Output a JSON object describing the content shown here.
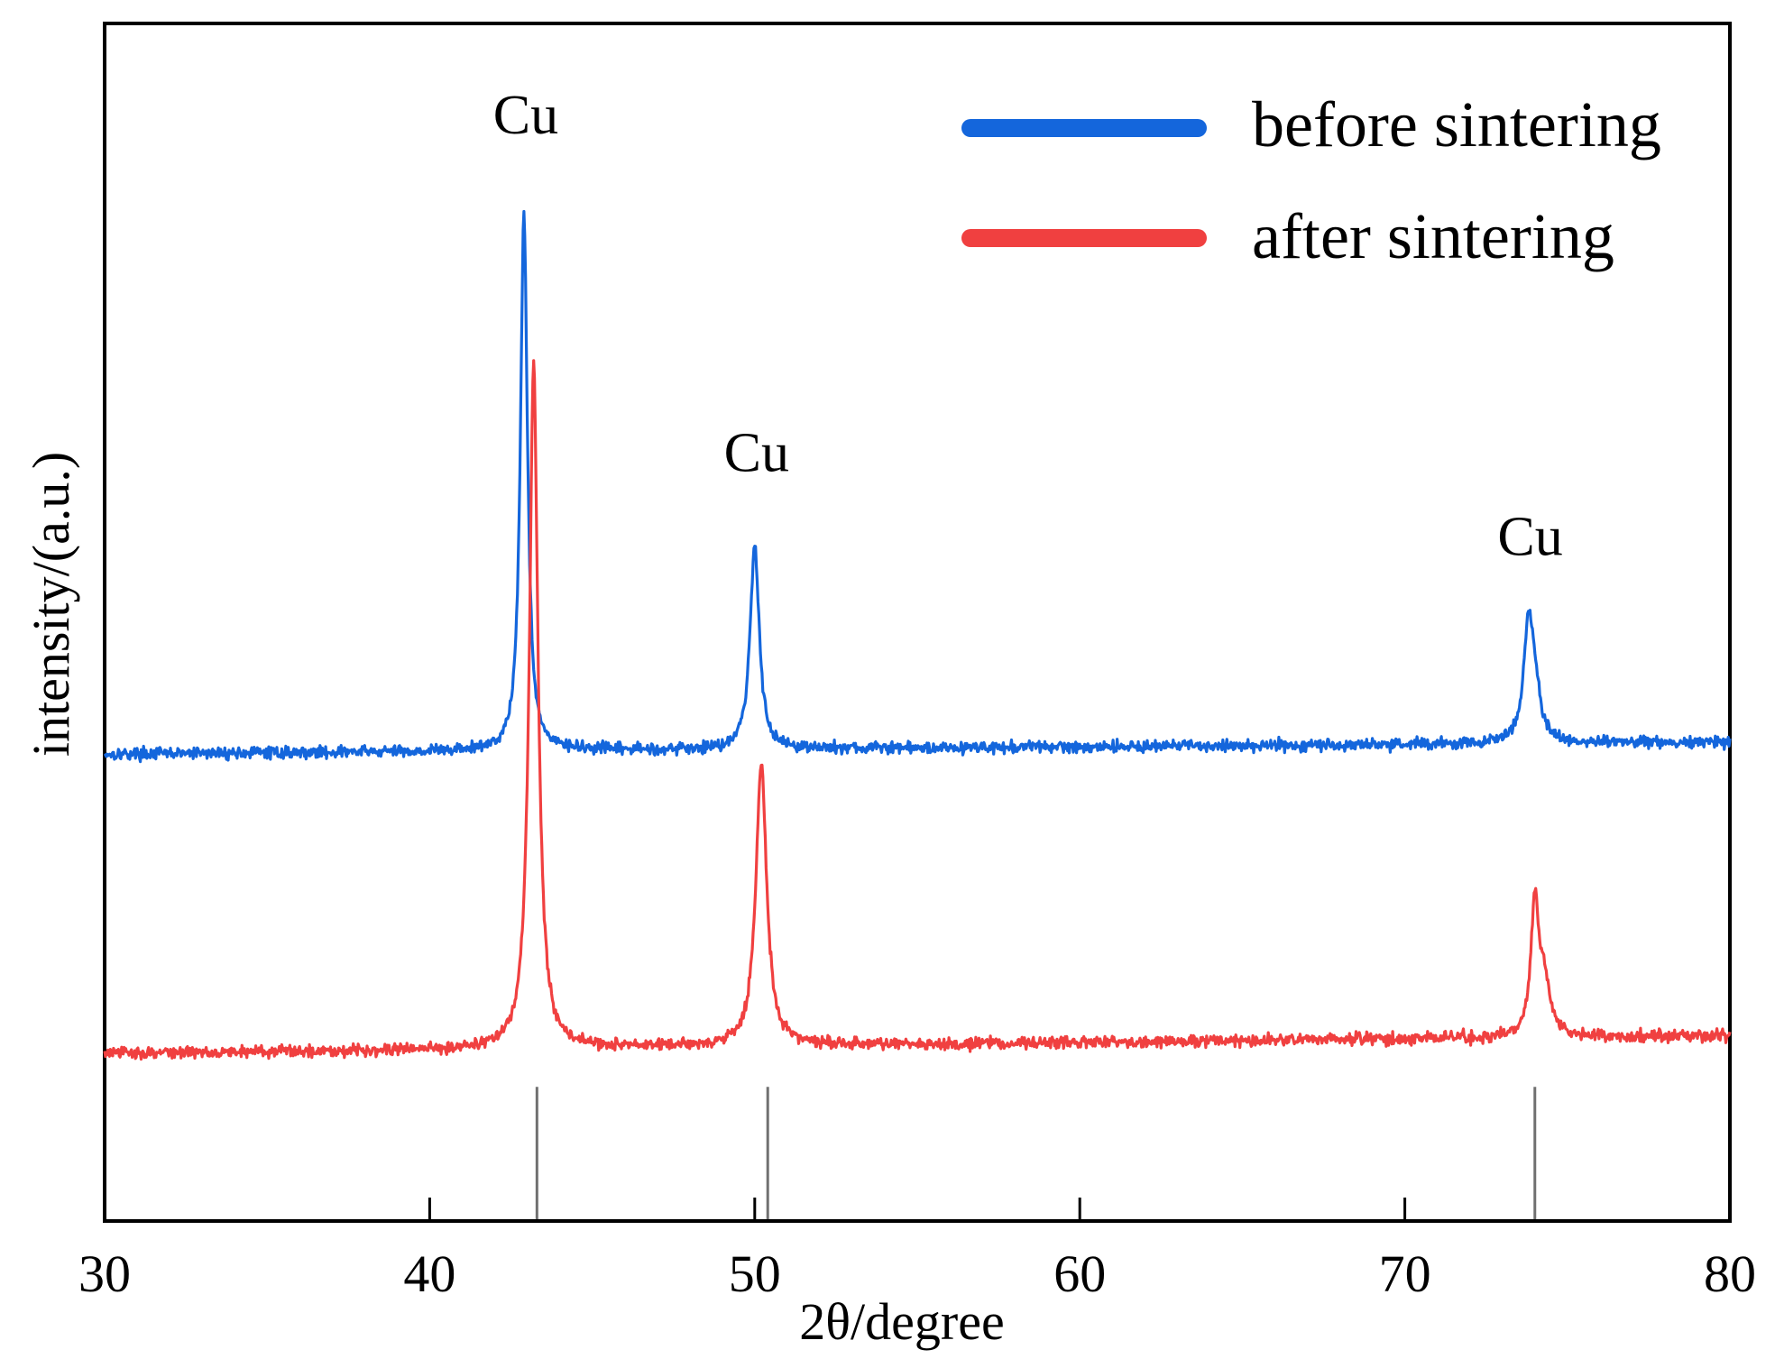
{
  "chart_data": {
    "type": "line",
    "title": "",
    "xlabel": "2θ/degree",
    "ylabel": "intensity/(a.u.)",
    "xlim": [
      30,
      80
    ],
    "ylim": [
      0,
      100
    ],
    "x_ticks": [
      30,
      40,
      50,
      60,
      70,
      80
    ],
    "x_tick_labels": [
      "30",
      "40",
      "50",
      "60",
      "70",
      "80"
    ],
    "y_ticks_visible": false,
    "grid": false,
    "legend_position": "top-right",
    "series": [
      {
        "name": "before sintering",
        "color": "#1466dc",
        "baseline": 39,
        "baseline_end": 40,
        "peaks": [
          {
            "x": 42.9,
            "height": 45,
            "width": 0.13
          },
          {
            "x": 50.0,
            "height": 17,
            "width": 0.17
          },
          {
            "x": 73.8,
            "height": 9.4,
            "width": 0.17
          },
          {
            "x": 74.0,
            "height": 4,
            "width": 0.18
          }
        ],
        "noise": 0.35
      },
      {
        "name": "after sintering",
        "color": "#f04040",
        "baseline": 14,
        "baseline_end": 15.5,
        "peaks": [
          {
            "x": 43.2,
            "height": 57,
            "width": 0.16
          },
          {
            "x": 50.2,
            "height": 23.5,
            "width": 0.2
          },
          {
            "x": 74.0,
            "height": 11,
            "width": 0.15
          },
          {
            "x": 74.3,
            "height": 4,
            "width": 0.2
          }
        ],
        "noise": 0.35
      }
    ],
    "reference_lines": [
      {
        "x": 43.3,
        "y_top": 11.2
      },
      {
        "x": 50.4,
        "y_top": 11.2
      },
      {
        "x": 74.0,
        "y_top": 11.2
      }
    ],
    "annotations": [
      {
        "text": "Cu",
        "x": 42.9,
        "y": 90.8
      },
      {
        "text": "Cu",
        "x": 50.0,
        "y": 62.6
      },
      {
        "text": "Cu",
        "x": 73.8,
        "y": 55.6
      }
    ]
  }
}
